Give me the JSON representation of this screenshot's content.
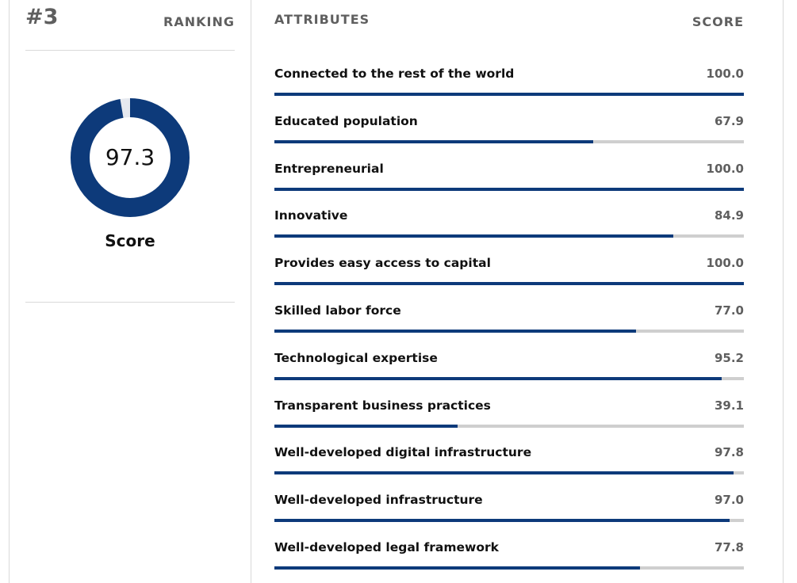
{
  "ranking": {
    "rank": "#3",
    "label": "RANKING"
  },
  "overall": {
    "score": "97.3",
    "score_fraction": 0.973,
    "label": "Score"
  },
  "attributes": {
    "header_label": "ATTRIBUTES",
    "score_header": "SCORE",
    "items": [
      {
        "name": "Connected to the rest of the world",
        "score": "100.0",
        "value": 100.0
      },
      {
        "name": "Educated population",
        "score": "67.9",
        "value": 67.9
      },
      {
        "name": "Entrepreneurial",
        "score": "100.0",
        "value": 100.0
      },
      {
        "name": "Innovative",
        "score": "84.9",
        "value": 84.9
      },
      {
        "name": "Provides easy access to capital",
        "score": "100.0",
        "value": 100.0
      },
      {
        "name": "Skilled labor force",
        "score": "77.0",
        "value": 77.0
      },
      {
        "name": "Technological expertise",
        "score": "95.2",
        "value": 95.2
      },
      {
        "name": "Transparent business practices",
        "score": "39.1",
        "value": 39.1
      },
      {
        "name": "Well-developed digital infrastructure",
        "score": "97.8",
        "value": 97.8
      },
      {
        "name": "Well-developed infrastructure",
        "score": "97.0",
        "value": 97.0
      },
      {
        "name": "Well-developed legal framework",
        "score": "77.8",
        "value": 77.8
      }
    ]
  },
  "colors": {
    "accent": "#0d3a7a",
    "track": "#cfcfcf",
    "donut_track": "#e6e9ef"
  }
}
